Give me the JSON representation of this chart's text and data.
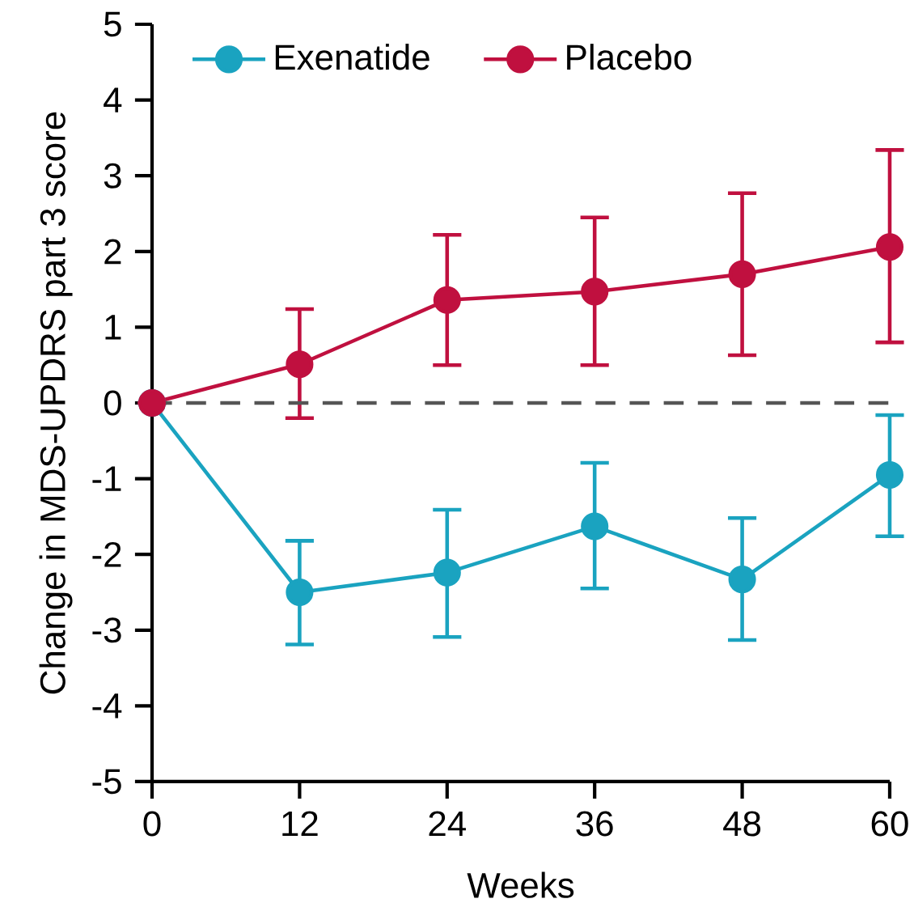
{
  "chart_data": {
    "type": "line",
    "xlabel": "Weeks",
    "ylabel": "Change in MDS-UPDRS part 3 score",
    "x": [
      0,
      12,
      24,
      36,
      48,
      60
    ],
    "series": [
      {
        "name": "Exenatide",
        "color": "#1aa3c0",
        "values": [
          0,
          -2.5,
          -2.24,
          -1.63,
          -2.33,
          -0.95
        ],
        "errors": [
          null,
          [
            -3.19,
            -1.82
          ],
          [
            -3.09,
            -1.41
          ],
          [
            -2.45,
            -0.79
          ],
          [
            -3.13,
            -1.52
          ],
          [
            -1.76,
            -0.16
          ]
        ]
      },
      {
        "name": "Placebo",
        "color": "#c0103f",
        "values": [
          0,
          0.51,
          1.36,
          1.47,
          1.7,
          2.06
        ],
        "errors": [
          null,
          [
            -0.2,
            1.24
          ],
          [
            0.5,
            2.22
          ],
          [
            0.5,
            2.45
          ],
          [
            0.63,
            2.77
          ],
          [
            0.8,
            3.34
          ]
        ]
      }
    ],
    "xlim": [
      0,
      60
    ],
    "xticks": [
      0,
      12,
      24,
      36,
      48,
      60
    ],
    "ylim": [
      -5,
      5
    ],
    "yticks": [
      -5,
      -4,
      -3,
      -2,
      -1,
      0,
      1,
      2,
      3,
      4,
      5
    ],
    "ref_lines": [
      {
        "axis": "y",
        "value": 0,
        "color": "#555555",
        "line_style": "dashed"
      }
    ],
    "legend": "top left",
    "marker": "circle",
    "line_style": "solid",
    "grid": false
  }
}
